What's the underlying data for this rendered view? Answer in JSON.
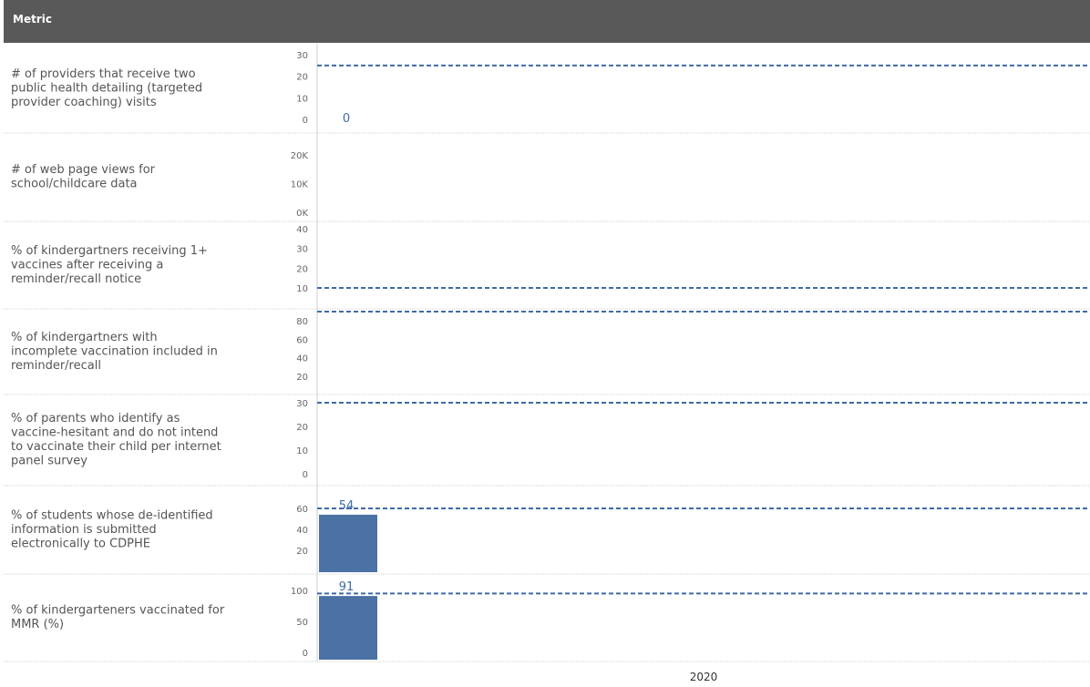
{
  "header": {
    "metric_label": "Metric"
  },
  "chart_data": {
    "type": "bar",
    "x_categories": [
      "2020"
    ],
    "colors": {
      "bar": "#4a72a5",
      "target_line": "#3f6aa8",
      "label": "#3f6aa8",
      "header": "#595959",
      "separator": "#d0d0d0"
    },
    "rows": [
      {
        "metric": "# of providers that receive two public health detailing (targeted provider coaching) visits",
        "lines": [
          "# of providers that receive two",
          "public health detailing (targeted",
          "provider coaching) visits"
        ],
        "ticks": [
          "30",
          "20",
          "10",
          "0"
        ],
        "ylim": [
          0,
          30
        ],
        "value": 0,
        "value_label": "0",
        "target": 25
      },
      {
        "metric": "# of web page views for school/childcare data",
        "lines": [
          "# of web page views for",
          "school/childcare data"
        ],
        "ticks": [
          "20K",
          "10K",
          "0K"
        ],
        "ylim": [
          0,
          20000
        ],
        "value": null,
        "value_label": "",
        "target": null
      },
      {
        "metric": "% of kindergartners receiving 1+ vaccines after receiving a reminder/recall notice",
        "lines": [
          "% of kindergartners receiving 1+",
          "vaccines after receiving a",
          "reminder/recall notice"
        ],
        "ticks": [
          "40",
          "30",
          "20",
          "10"
        ],
        "ylim": [
          10,
          40
        ],
        "value": null,
        "value_label": "",
        "target": 10
      },
      {
        "metric": "% of kindergartners with incomplete vaccination included in reminder/recall",
        "lines": [
          "% of kindergartners with",
          "incomplete vaccination included in",
          "reminder/recall"
        ],
        "ticks": [
          "80",
          "60",
          "40",
          "20"
        ],
        "ylim": [
          20,
          80
        ],
        "value": null,
        "value_label": "",
        "target": 90
      },
      {
        "metric": "% of parents who identify as vaccine-hesitant and do not intend to vaccinate their child per internet panel survey",
        "lines": [
          "% of parents who identify as",
          "vaccine-hesitant and do not intend",
          "to vaccinate their child per internet",
          "panel survey"
        ],
        "ticks": [
          "30",
          "20",
          "10",
          "0"
        ],
        "ylim": [
          0,
          30
        ],
        "value": null,
        "value_label": "",
        "target": 30
      },
      {
        "metric": "% of students whose de-identified information is submitted electronically to CDPHE",
        "lines": [
          "% of students whose de-identified",
          "information is submitted",
          "electronically to CDPHE"
        ],
        "ticks": [
          "60",
          "40",
          "20"
        ],
        "ylim": [
          20,
          60
        ],
        "value": 54,
        "value_label": "54",
        "target": 60
      },
      {
        "metric": "% of kindergarteners vaccinated for MMR (%)",
        "lines": [
          "% of kindergarteners vaccinated for",
          "MMR (%)"
        ],
        "ticks": [
          "100",
          "50",
          "0"
        ],
        "ylim": [
          0,
          100
        ],
        "value": 91,
        "value_label": "91",
        "target": 95
      }
    ]
  }
}
